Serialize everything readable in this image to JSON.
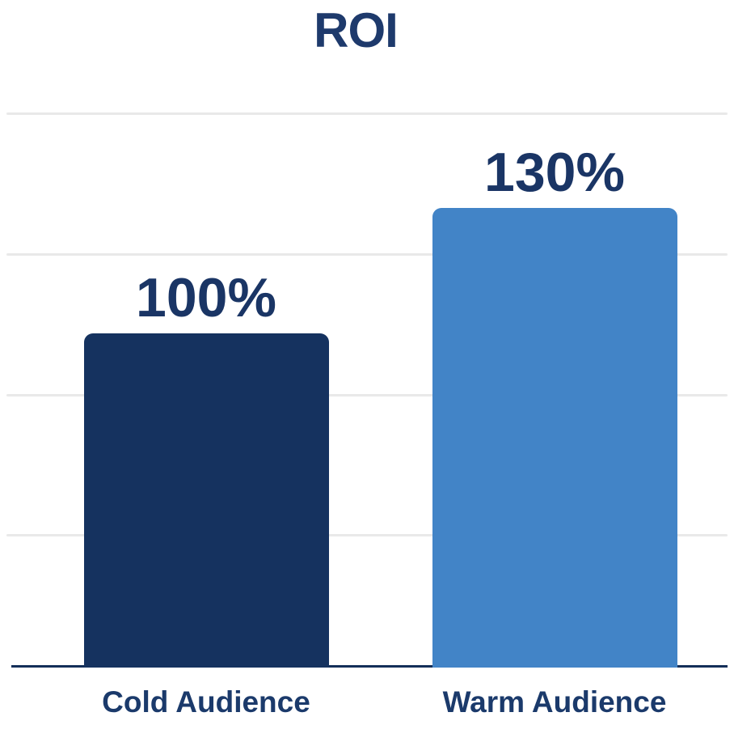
{
  "page": {
    "background_color": "#ffffff"
  },
  "chart_data": {
    "type": "bar",
    "title": "ROI",
    "categories": [
      "Cold Audience",
      "Warm Audience"
    ],
    "values": [
      100,
      130
    ],
    "value_labels": [
      "100%",
      "130%"
    ],
    "bar_colors": [
      "#15325f",
      "#4284c7"
    ],
    "title_color": "#1e3a6c",
    "value_label_color": "#1a3565",
    "category_label_color": "#1b3a6b",
    "gridline_color": "#e9e9e9",
    "axis_color": "#142f59",
    "grid": true,
    "gridline_count": 4,
    "legend": "none",
    "xlabel": "",
    "ylabel": "",
    "ylim": [
      20,
      175
    ]
  }
}
